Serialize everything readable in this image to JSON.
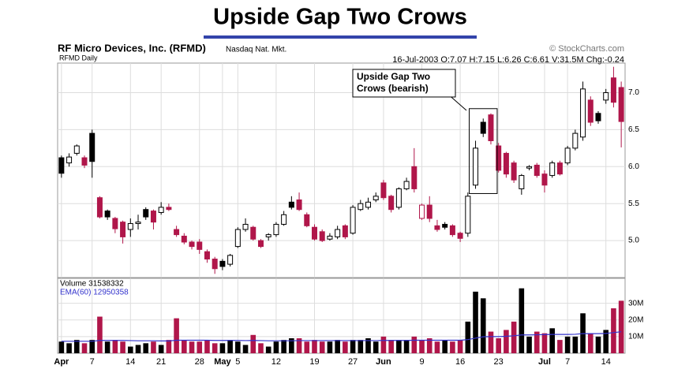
{
  "chart_data": [
    {
      "type": "candlestick",
      "title": "Upside Gap Two Crows",
      "subtitle": "RF Micro Devices, Inc. (RFMD)",
      "exchange": "Nasdaq Nat. Mkt.",
      "source": "© StockCharts.com",
      "symbol_label": "RFMD Daily",
      "info": "16-Jul-2003 O:7.07 H:7.15 L:6.26 C:6.61 V:31.5M Chg:-0.24",
      "annotation": [
        "Upside Gap Two",
        "Crows (bearish)"
      ],
      "categories": [
        "Apr",
        null,
        null,
        null,
        "7",
        null,
        null,
        null,
        null,
        "14",
        null,
        null,
        null,
        "21",
        null,
        null,
        null,
        null,
        "28",
        null,
        null,
        "May",
        null,
        "5",
        null,
        null,
        null,
        null,
        "12",
        null,
        null,
        null,
        null,
        "19",
        null,
        null,
        null,
        null,
        "27",
        null,
        null,
        null,
        "Jun",
        null,
        null,
        null,
        null,
        "9",
        null,
        null,
        null,
        null,
        "16",
        null,
        null,
        null,
        null,
        "23",
        null,
        null,
        null,
        null,
        null,
        "Jul",
        null,
        null,
        "7",
        null,
        null,
        null,
        null,
        "14",
        null,
        null
      ],
      "open": [
        6.12,
        6.05,
        6.18,
        6.12,
        6.45,
        5.58,
        5.4,
        5.3,
        5.25,
        5.15,
        5.23,
        5.42,
        5.4,
        5.38,
        5.45,
        5.15,
        5.06,
        4.98,
        4.98,
        4.85,
        4.75,
        4.72,
        4.68,
        4.92,
        5.15,
        5.18,
        5.0,
        5.05,
        5.08,
        5.22,
        5.52,
        5.55,
        5.35,
        5.18,
        5.12,
        5.02,
        5.05,
        5.2,
        5.1,
        5.42,
        5.45,
        5.55,
        5.78,
        5.6,
        5.45,
        5.7,
        6.0,
        5.3,
        5.48,
        5.2,
        5.22,
        5.2,
        5.1,
        5.1,
        5.75,
        6.6,
        6.7,
        6.28,
        6.18,
        6.05,
        5.7,
        5.98,
        6.02,
        5.9,
        5.88,
        6.05,
        6.05,
        6.25,
        6.4,
        6.9,
        6.72,
        6.9,
        7.2,
        7.07
      ],
      "high": [
        6.15,
        6.18,
        6.3,
        6.15,
        6.5,
        5.6,
        5.42,
        5.32,
        5.27,
        5.3,
        5.35,
        5.45,
        5.42,
        5.52,
        5.5,
        5.2,
        5.1,
        5.0,
        5.02,
        4.88,
        4.78,
        4.75,
        4.82,
        5.18,
        5.3,
        5.2,
        5.02,
        5.1,
        5.25,
        5.4,
        5.6,
        5.65,
        5.38,
        5.22,
        5.15,
        5.1,
        5.2,
        5.22,
        5.48,
        5.55,
        5.58,
        5.65,
        5.82,
        5.62,
        5.72,
        5.85,
        6.25,
        5.5,
        5.6,
        5.28,
        5.25,
        5.22,
        5.12,
        5.65,
        6.35,
        6.65,
        6.72,
        6.32,
        6.2,
        6.08,
        5.9,
        6.02,
        6.05,
        5.95,
        6.08,
        6.08,
        6.28,
        6.5,
        7.15,
        6.95,
        6.75,
        7.05,
        7.35,
        7.15
      ],
      "low": [
        5.85,
        6.0,
        6.15,
        5.98,
        5.85,
        5.3,
        5.28,
        5.1,
        4.96,
        5.05,
        5.15,
        5.28,
        5.15,
        5.35,
        5.4,
        5.05,
        4.95,
        4.88,
        4.82,
        4.7,
        4.55,
        4.6,
        4.65,
        4.9,
        5.12,
        5.0,
        4.9,
        5.0,
        5.05,
        5.2,
        5.42,
        5.4,
        5.18,
        5.0,
        4.98,
        5.0,
        5.02,
        5.02,
        5.08,
        5.4,
        5.42,
        5.52,
        5.55,
        5.38,
        5.42,
        5.68,
        5.65,
        5.28,
        5.25,
        5.12,
        5.15,
        5.05,
        4.98,
        5.05,
        5.7,
        6.4,
        6.3,
        5.92,
        5.85,
        5.78,
        5.62,
        5.95,
        5.85,
        5.65,
        5.85,
        5.88,
        6.02,
        6.22,
        6.35,
        6.55,
        6.58,
        6.85,
        6.8,
        6.26
      ],
      "close": [
        5.91,
        6.13,
        6.28,
        6.02,
        6.07,
        5.32,
        5.32,
        5.16,
        5.05,
        5.23,
        5.25,
        5.32,
        5.25,
        5.45,
        5.42,
        5.08,
        4.98,
        4.92,
        4.88,
        4.75,
        4.62,
        4.65,
        4.8,
        5.15,
        5.22,
        5.02,
        4.92,
        5.08,
        5.22,
        5.35,
        5.45,
        5.42,
        5.2,
        5.02,
        5.0,
        5.06,
        5.15,
        5.05,
        5.45,
        5.5,
        5.52,
        5.6,
        5.58,
        5.42,
        5.7,
        5.8,
        5.7,
        5.48,
        5.3,
        5.15,
        5.18,
        5.08,
        5.03,
        5.6,
        6.25,
        6.45,
        6.35,
        5.95,
        5.9,
        5.82,
        5.88,
        6.0,
        5.88,
        5.75,
        6.05,
        5.9,
        6.25,
        6.45,
        7.05,
        6.6,
        6.62,
        7.0,
        6.87,
        6.61
      ],
      "up_color": "#000000",
      "down_color": "#b0164a",
      "ylim": [
        4.5,
        7.4
      ],
      "yticks": [
        {
          "value": 5,
          "label": "5.0"
        },
        5.5,
        {
          "value": 6,
          "label": "6.0"
        },
        6.5,
        {
          "value": 7,
          "label": "7.0"
        }
      ],
      "grid": true
    },
    {
      "type": "bar",
      "series": [
        {
          "name": "Volume 31538332",
          "values": [
            7,
            6,
            8,
            6,
            8,
            22,
            7,
            8,
            7,
            4,
            5,
            6,
            7,
            5,
            8,
            21,
            8,
            7,
            7,
            8,
            6,
            6,
            8,
            7,
            5,
            11,
            6,
            4,
            7,
            8,
            9,
            9,
            7,
            8,
            7,
            7,
            8,
            7,
            8,
            8,
            9,
            7,
            10,
            8,
            8,
            8,
            10,
            8,
            9,
            7,
            8,
            7,
            8,
            19,
            37,
            33,
            13,
            9,
            14,
            19,
            39,
            10,
            13,
            12,
            15,
            8,
            10,
            10,
            24,
            12,
            10,
            14,
            27,
            31.54
          ]
        },
        {
          "name": "EMA(60) 12950358",
          "type": "line",
          "color": "#3333cc",
          "values": [
            7.2,
            7.2,
            7.2,
            7.2,
            7.2,
            7.7,
            7.7,
            7.7,
            7.7,
            7.6,
            7.5,
            7.5,
            7.5,
            7.4,
            7.4,
            7.8,
            7.8,
            7.8,
            7.8,
            7.8,
            7.7,
            7.7,
            7.7,
            7.7,
            7.6,
            7.7,
            7.6,
            7.5,
            7.5,
            7.5,
            7.5,
            7.6,
            7.6,
            7.6,
            7.6,
            7.6,
            7.6,
            7.6,
            7.6,
            7.6,
            7.6,
            7.6,
            7.7,
            7.7,
            7.7,
            7.7,
            7.8,
            7.8,
            7.8,
            7.8,
            7.8,
            7.8,
            7.8,
            8.2,
            9.1,
            9.9,
            10.0,
            10.0,
            10.2,
            10.5,
            11.0,
            11.0,
            11.1,
            11.2,
            11.3,
            11.3,
            11.3,
            11.4,
            11.8,
            11.8,
            11.8,
            11.9,
            12.4,
            12.95
          ]
        }
      ],
      "ylim": [
        0,
        45
      ],
      "yticks": [
        {
          "value": 10,
          "label": "10M"
        },
        {
          "value": 20,
          "label": "20M"
        },
        {
          "value": 30,
          "label": "30M"
        }
      ],
      "grid": true
    }
  ]
}
